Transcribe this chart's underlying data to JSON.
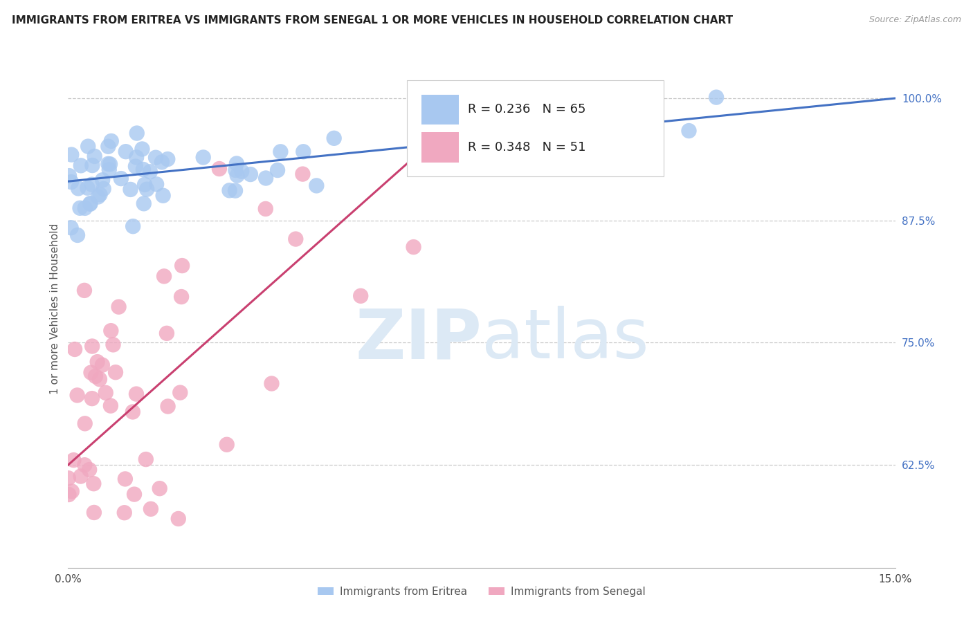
{
  "title": "IMMIGRANTS FROM ERITREA VS IMMIGRANTS FROM SENEGAL 1 OR MORE VEHICLES IN HOUSEHOLD CORRELATION CHART",
  "source": "Source: ZipAtlas.com",
  "ylabel": "1 or more Vehicles in Household",
  "ytick_labels": [
    "100.0%",
    "87.5%",
    "75.0%",
    "62.5%"
  ],
  "ytick_values": [
    1.0,
    0.875,
    0.75,
    0.625
  ],
  "xlim": [
    0.0,
    0.15
  ],
  "ylim": [
    0.52,
    1.05
  ],
  "legend_label_eritrea": "Immigrants from Eritrea",
  "legend_label_senegal": "Immigrants from Senegal",
  "color_eritrea": "#a8c8f0",
  "color_senegal": "#f0a8c0",
  "line_color_eritrea": "#4472c4",
  "line_color_senegal": "#c94070",
  "background_color": "#ffffff",
  "watermark_color": "#dce9f5",
  "R_eritrea": 0.236,
  "N_eritrea": 65,
  "R_senegal": 0.348,
  "N_senegal": 51,
  "title_fontsize": 11,
  "source_fontsize": 9,
  "tick_fontsize": 11,
  "ylabel_fontsize": 11,
  "legend_fontsize": 13
}
